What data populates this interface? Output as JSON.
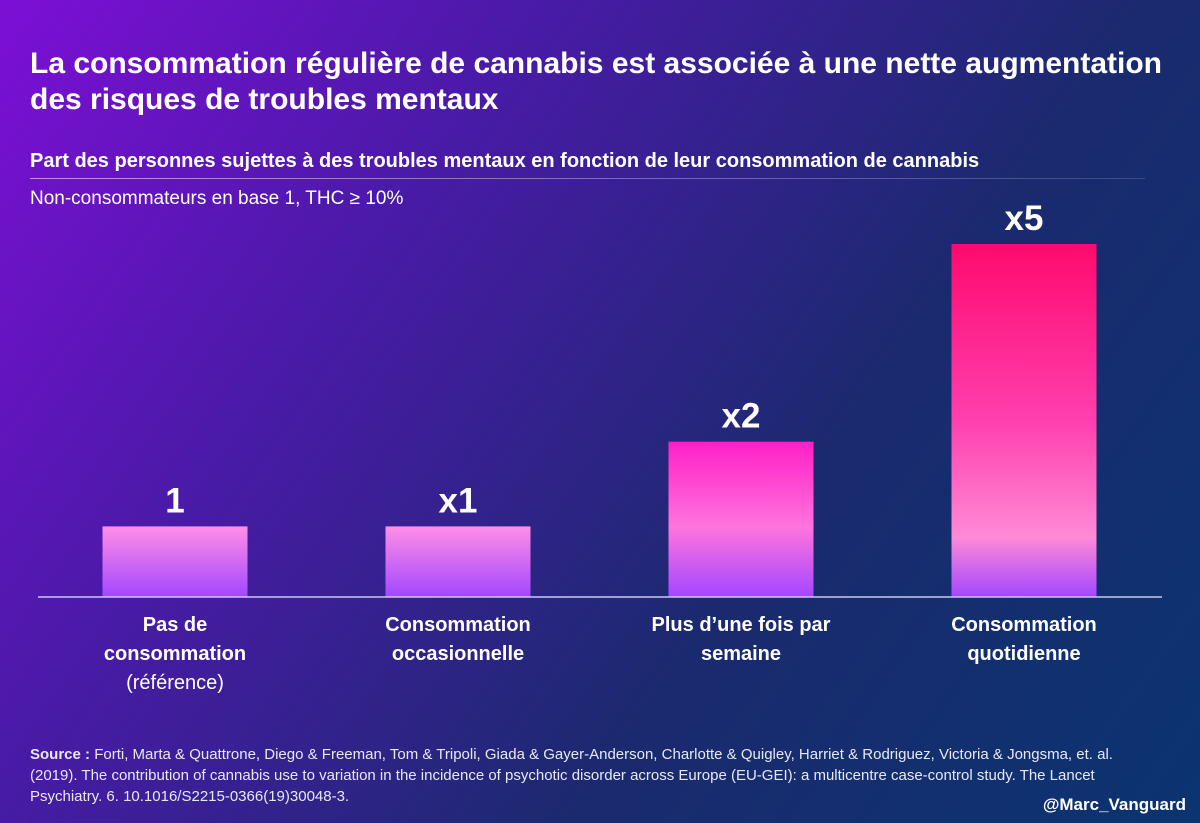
{
  "header": {
    "title": "La consommation régulière de cannabis est associée à une nette augmentation des risques de troubles mentaux",
    "subtitle": "Part des personnes sujettes à des troubles mentaux en fonction de leur consommation de cannabis",
    "note": "Non-consommateurs en base 1, THC ≥ 10%"
  },
  "chart_data": {
    "type": "bar",
    "title": "Part des personnes sujettes à des troubles mentaux en fonction de leur consommation de cannabis",
    "subtitle": "Non-consommateurs en base 1, THC ≥ 10%",
    "categories": [
      {
        "line1": "Pas de",
        "line2": "consommation",
        "line3": "(référence)"
      },
      {
        "line1": "Consommation",
        "line2": "occasionnelle",
        "line3": ""
      },
      {
        "line1": "Plus d’une fois par",
        "line2": "semaine",
        "line3": ""
      },
      {
        "line1": "Consommation",
        "line2": "quotidienne",
        "line3": ""
      }
    ],
    "values": [
      1,
      1,
      2.2,
      5
    ],
    "data_labels": [
      "1",
      "x1",
      "x2",
      "x5"
    ],
    "xlabel": "",
    "ylabel": "",
    "ylim": [
      0,
      5
    ],
    "grid": false,
    "colors": {
      "bar_top": "#ff0a78",
      "bar_mid": "#ff7fd8",
      "bar_bottom": "#a347ff",
      "axis": "#c9c9e8"
    }
  },
  "footer": {
    "source_label": "Source :",
    "source_text": "Forti, Marta & Quattrone, Diego & Freeman, Tom & Tripoli, Giada & Gayer-Anderson, Charlotte & Quigley, Harriet & Rodriguez, Victoria & Jongsma, et. al. (2019). The contribution of cannabis use to variation in the incidence of psychotic disorder across Europe (EU-GEI): a multicentre case-control study. The Lancet Psychiatry. 6. 10.1016/S2215-0366(19)30048-3.",
    "handle": "@Marc_Vanguard"
  }
}
